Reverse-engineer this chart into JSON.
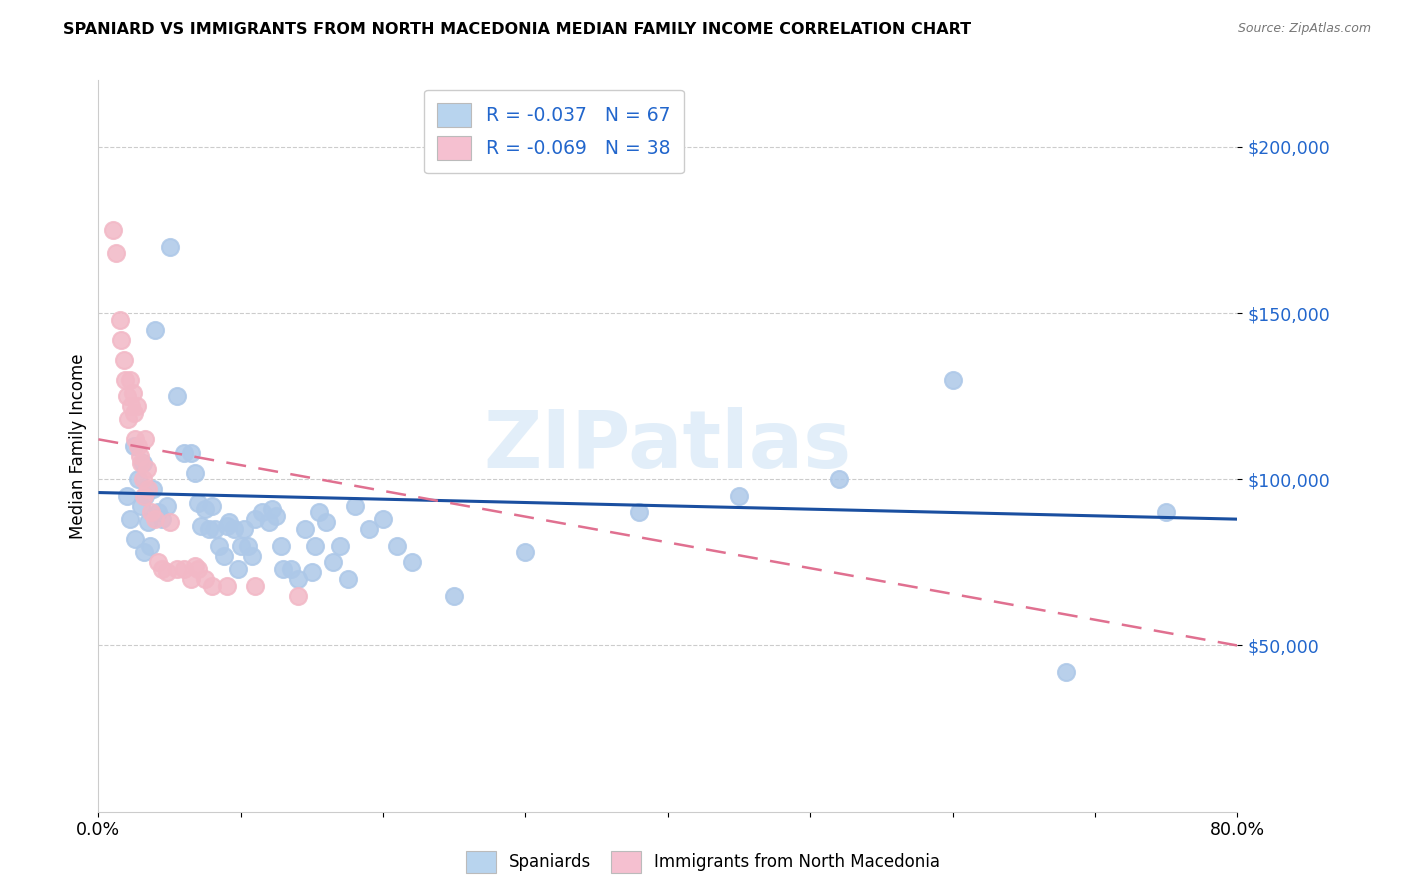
{
  "title": "SPANIARD VS IMMIGRANTS FROM NORTH MACEDONIA MEDIAN FAMILY INCOME CORRELATION CHART",
  "source": "Source: ZipAtlas.com",
  "ylabel": "Median Family Income",
  "y_ticks": [
    50000,
    100000,
    150000,
    200000
  ],
  "y_tick_labels": [
    "$50,000",
    "$100,000",
    "$150,000",
    "$200,000"
  ],
  "xlim": [
    0.0,
    0.8
  ],
  "ylim": [
    0,
    220000
  ],
  "watermark": "ZIPatlas",
  "legend_spaniards_R": "-0.037",
  "legend_spaniards_N": "67",
  "legend_macedonia_R": "-0.069",
  "legend_macedonia_N": "38",
  "scatter_color_spaniards": "#adc8e8",
  "scatter_color_macedonia": "#f2b8c6",
  "trend_color_spaniards": "#1a4fa0",
  "trend_color_macedonia": "#e07090",
  "legend_box_color_spaniards": "#b8d4ee",
  "legend_box_color_macedonia": "#f5c0d0",
  "spaniards_x": [
    0.02,
    0.022,
    0.025,
    0.026,
    0.028,
    0.03,
    0.031,
    0.032,
    0.033,
    0.035,
    0.036,
    0.038,
    0.04,
    0.042,
    0.045,
    0.048,
    0.05,
    0.055,
    0.06,
    0.065,
    0.068,
    0.07,
    0.072,
    0.075,
    0.078,
    0.08,
    0.082,
    0.085,
    0.088,
    0.09,
    0.092,
    0.095,
    0.098,
    0.1,
    0.102,
    0.105,
    0.108,
    0.11,
    0.115,
    0.12,
    0.122,
    0.125,
    0.128,
    0.13,
    0.135,
    0.14,
    0.145,
    0.15,
    0.152,
    0.155,
    0.16,
    0.165,
    0.17,
    0.175,
    0.18,
    0.19,
    0.2,
    0.21,
    0.22,
    0.25,
    0.3,
    0.38,
    0.45,
    0.52,
    0.6,
    0.68,
    0.75
  ],
  "spaniards_y": [
    95000,
    88000,
    110000,
    82000,
    100000,
    92000,
    105000,
    78000,
    95000,
    87000,
    80000,
    97000,
    145000,
    90000,
    88000,
    92000,
    170000,
    125000,
    108000,
    108000,
    102000,
    93000,
    86000,
    91000,
    85000,
    92000,
    85000,
    80000,
    77000,
    86000,
    87000,
    85000,
    73000,
    80000,
    85000,
    80000,
    77000,
    88000,
    90000,
    87000,
    91000,
    89000,
    80000,
    73000,
    73000,
    70000,
    85000,
    72000,
    80000,
    90000,
    87000,
    75000,
    80000,
    70000,
    92000,
    85000,
    88000,
    80000,
    75000,
    65000,
    78000,
    90000,
    95000,
    100000,
    130000,
    42000,
    90000
  ],
  "macedonia_x": [
    0.01,
    0.012,
    0.015,
    0.016,
    0.018,
    0.019,
    0.02,
    0.021,
    0.022,
    0.023,
    0.024,
    0.025,
    0.026,
    0.027,
    0.028,
    0.029,
    0.03,
    0.031,
    0.032,
    0.033,
    0.034,
    0.035,
    0.037,
    0.04,
    0.042,
    0.045,
    0.048,
    0.05,
    0.055,
    0.06,
    0.065,
    0.068,
    0.07,
    0.075,
    0.08,
    0.09,
    0.11,
    0.14
  ],
  "macedonia_y": [
    175000,
    168000,
    148000,
    142000,
    136000,
    130000,
    125000,
    118000,
    130000,
    122000,
    126000,
    120000,
    112000,
    122000,
    110000,
    107000,
    105000,
    100000,
    95000,
    112000,
    103000,
    97000,
    90000,
    88000,
    75000,
    73000,
    72000,
    87000,
    73000,
    73000,
    70000,
    74000,
    73000,
    70000,
    68000,
    68000,
    68000,
    65000
  ],
  "trend_sp_x0": 0.0,
  "trend_sp_y0": 96000,
  "trend_sp_x1": 0.8,
  "trend_sp_y1": 88000,
  "trend_mac_x0": 0.0,
  "trend_mac_y0": 112000,
  "trend_mac_x1": 0.8,
  "trend_mac_y1": 50000
}
